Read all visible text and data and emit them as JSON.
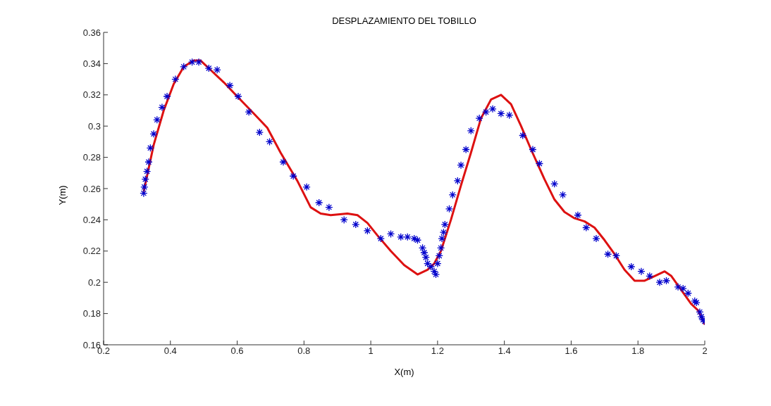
{
  "chart_data": {
    "type": "scatter",
    "title": "DESPLAZAMIENTO DEL TOBILLO",
    "xlabel": "X(m)",
    "ylabel": "Y(m)",
    "xlim": [
      0.2,
      2
    ],
    "xticks": [
      0.2,
      0.4,
      0.6,
      0.8,
      1,
      1.2,
      1.4,
      1.6,
      1.8,
      2
    ],
    "ylim": [
      0.16,
      0.36
    ],
    "yticks": [
      0.16,
      0.18,
      0.2,
      0.22,
      0.24,
      0.26,
      0.28,
      0.3,
      0.32,
      0.34,
      0.36
    ],
    "grid": false,
    "series": [
      {
        "color": "#0000cc",
        "marker": "cross",
        "x": [
          0.32,
          0.322,
          0.325,
          0.33,
          0.335,
          0.34,
          0.35,
          0.36,
          0.375,
          0.39,
          0.415,
          0.44,
          0.465,
          0.485,
          0.515,
          0.54,
          0.578,
          0.603,
          0.635,
          0.667,
          0.697,
          0.738,
          0.768,
          0.808,
          0.845,
          0.875,
          0.92,
          0.955,
          0.99,
          1.03,
          1.06,
          1.09,
          1.11,
          1.13,
          1.14,
          1.155,
          1.16,
          1.165,
          1.17,
          1.18,
          1.19,
          1.195,
          1.2,
          1.205,
          1.21,
          1.213,
          1.218,
          1.222,
          1.235,
          1.245,
          1.26,
          1.27,
          1.285,
          1.3,
          1.325,
          1.345,
          1.365,
          1.39,
          1.415,
          1.455,
          1.485,
          1.505,
          1.55,
          1.575,
          1.62,
          1.645,
          1.675,
          1.71,
          1.735,
          1.78,
          1.81,
          1.835,
          1.865,
          1.885,
          1.92,
          1.935,
          1.95,
          1.97,
          1.975,
          1.985,
          1.99,
          1.995,
          2.0
        ],
        "values": [
          0.257,
          0.261,
          0.266,
          0.271,
          0.277,
          0.286,
          0.295,
          0.304,
          0.312,
          0.319,
          0.33,
          0.338,
          0.341,
          0.341,
          0.337,
          0.336,
          0.326,
          0.319,
          0.309,
          0.296,
          0.29,
          0.277,
          0.268,
          0.261,
          0.251,
          0.248,
          0.24,
          0.237,
          0.233,
          0.228,
          0.231,
          0.229,
          0.229,
          0.228,
          0.227,
          0.222,
          0.219,
          0.216,
          0.212,
          0.21,
          0.207,
          0.205,
          0.212,
          0.217,
          0.222,
          0.228,
          0.232,
          0.237,
          0.247,
          0.256,
          0.265,
          0.275,
          0.285,
          0.297,
          0.305,
          0.309,
          0.311,
          0.308,
          0.307,
          0.294,
          0.285,
          0.276,
          0.263,
          0.256,
          0.243,
          0.235,
          0.228,
          0.218,
          0.217,
          0.21,
          0.207,
          0.204,
          0.2,
          0.201,
          0.197,
          0.196,
          0.193,
          0.188,
          0.187,
          0.181,
          0.178,
          0.176,
          0.175
        ]
      },
      {
        "type": "line",
        "color": "#dd1111",
        "marker": "none",
        "line_style": "solid",
        "x": [
          0.32,
          0.33,
          0.35,
          0.38,
          0.41,
          0.44,
          0.47,
          0.49,
          0.52,
          0.56,
          0.6,
          0.65,
          0.69,
          0.73,
          0.78,
          0.82,
          0.85,
          0.88,
          0.93,
          0.96,
          0.99,
          1.02,
          1.06,
          1.1,
          1.14,
          1.17,
          1.19,
          1.21,
          1.24,
          1.27,
          1.3,
          1.33,
          1.36,
          1.39,
          1.42,
          1.45,
          1.48,
          1.52,
          1.55,
          1.58,
          1.61,
          1.64,
          1.67,
          1.7,
          1.73,
          1.76,
          1.79,
          1.82,
          1.85,
          1.88,
          1.9,
          1.93,
          1.96,
          1.98,
          2.0
        ],
        "values": [
          0.258,
          0.268,
          0.288,
          0.31,
          0.327,
          0.338,
          0.342,
          0.342,
          0.336,
          0.328,
          0.319,
          0.308,
          0.299,
          0.283,
          0.265,
          0.248,
          0.244,
          0.243,
          0.244,
          0.243,
          0.238,
          0.23,
          0.22,
          0.211,
          0.205,
          0.208,
          0.212,
          0.22,
          0.24,
          0.262,
          0.283,
          0.305,
          0.317,
          0.32,
          0.314,
          0.3,
          0.285,
          0.266,
          0.253,
          0.245,
          0.241,
          0.239,
          0.235,
          0.227,
          0.218,
          0.208,
          0.201,
          0.201,
          0.204,
          0.207,
          0.204,
          0.195,
          0.186,
          0.182,
          0.173
        ]
      }
    ]
  }
}
